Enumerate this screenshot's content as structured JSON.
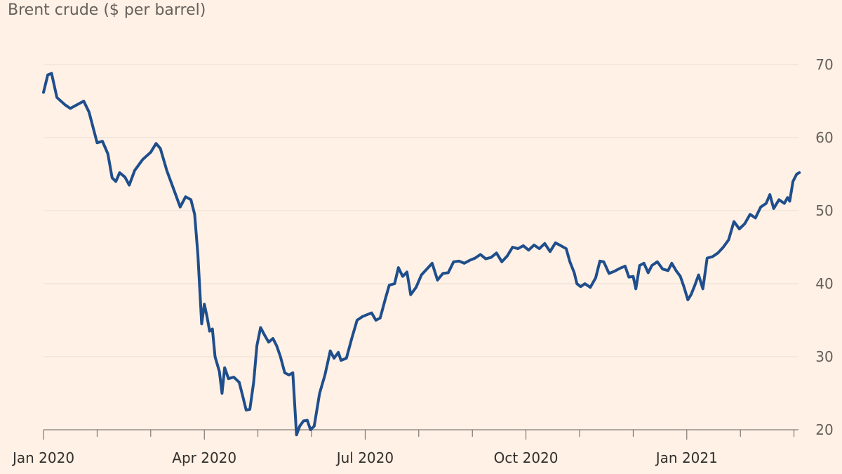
{
  "chart_data": {
    "type": "line",
    "title": "Brent crude ($ per barrel)",
    "xlabel": "",
    "ylabel": "",
    "ylim": [
      20,
      70
    ],
    "y_ticks": [
      20,
      30,
      40,
      50,
      60,
      70
    ],
    "grid": true,
    "x_tick_labels": [
      {
        "label": "Jan 2020",
        "month": 0
      },
      {
        "label": "Apr 2020",
        "month": 3
      },
      {
        "label": "Jul 2020",
        "month": 6
      },
      {
        "label": "Oct 2020",
        "month": 9
      },
      {
        "label": "Jan 2021",
        "month": 12
      }
    ],
    "x_minor_ticks_months": [
      1,
      2,
      4,
      5,
      7,
      8,
      10,
      11,
      13,
      14
    ],
    "x_range_months": [
      0,
      14.1
    ],
    "series": [
      {
        "name": "Brent crude",
        "color": "#1F4E8C",
        "points": [
          [
            0.0,
            66.2
          ],
          [
            0.08,
            68.6
          ],
          [
            0.15,
            68.8
          ],
          [
            0.25,
            65.5
          ],
          [
            0.4,
            64.5
          ],
          [
            0.5,
            64.0
          ],
          [
            0.6,
            64.4
          ],
          [
            0.75,
            65.0
          ],
          [
            0.85,
            63.5
          ],
          [
            1.0,
            59.3
          ],
          [
            1.1,
            59.5
          ],
          [
            1.2,
            57.8
          ],
          [
            1.28,
            54.5
          ],
          [
            1.35,
            54.0
          ],
          [
            1.42,
            55.2
          ],
          [
            1.52,
            54.6
          ],
          [
            1.6,
            53.5
          ],
          [
            1.7,
            55.5
          ],
          [
            1.85,
            57.0
          ],
          [
            2.0,
            58.0
          ],
          [
            2.1,
            59.2
          ],
          [
            2.18,
            58.5
          ],
          [
            2.3,
            55.5
          ],
          [
            2.45,
            52.5
          ],
          [
            2.55,
            50.5
          ],
          [
            2.65,
            51.9
          ],
          [
            2.75,
            51.5
          ],
          [
            2.82,
            49.5
          ],
          [
            2.88,
            44.0
          ],
          [
            2.95,
            34.5
          ],
          [
            3.0,
            37.2
          ],
          [
            3.05,
            35.5
          ],
          [
            3.1,
            33.5
          ],
          [
            3.15,
            33.8
          ],
          [
            3.2,
            30.0
          ],
          [
            3.28,
            28.0
          ],
          [
            3.33,
            25.0
          ],
          [
            3.38,
            28.5
          ],
          [
            3.45,
            27.0
          ],
          [
            3.55,
            27.2
          ],
          [
            3.65,
            26.5
          ],
          [
            3.72,
            24.5
          ],
          [
            3.78,
            22.7
          ],
          [
            3.85,
            22.8
          ],
          [
            3.92,
            26.5
          ],
          [
            3.98,
            31.5
          ],
          [
            4.05,
            34.0
          ],
          [
            4.12,
            33.0
          ],
          [
            4.2,
            32.0
          ],
          [
            4.28,
            32.5
          ],
          [
            4.35,
            31.5
          ],
          [
            4.42,
            30.0
          ],
          [
            4.5,
            27.8
          ],
          [
            4.58,
            27.5
          ],
          [
            4.65,
            27.8
          ],
          [
            4.72,
            19.3
          ],
          [
            4.78,
            20.5
          ],
          [
            4.85,
            21.2
          ],
          [
            4.92,
            21.3
          ],
          [
            4.98,
            20.0
          ],
          [
            5.05,
            20.5
          ],
          [
            5.15,
            25.0
          ],
          [
            5.25,
            27.5
          ],
          [
            5.35,
            30.8
          ],
          [
            5.42,
            29.8
          ],
          [
            5.5,
            30.6
          ],
          [
            5.55,
            29.5
          ],
          [
            5.65,
            29.8
          ],
          [
            5.75,
            32.5
          ],
          [
            5.85,
            35.0
          ],
          [
            5.95,
            35.5
          ],
          [
            6.05,
            35.8
          ],
          [
            6.12,
            36.0
          ],
          [
            6.2,
            35.0
          ],
          [
            6.28,
            35.3
          ],
          [
            6.38,
            38.0
          ],
          [
            6.45,
            39.8
          ],
          [
            6.55,
            40.0
          ],
          [
            6.62,
            42.2
          ],
          [
            6.7,
            41.0
          ],
          [
            6.78,
            41.6
          ],
          [
            6.85,
            38.5
          ],
          [
            6.95,
            39.5
          ],
          [
            7.05,
            41.2
          ],
          [
            7.15,
            42.0
          ],
          [
            7.25,
            42.8
          ],
          [
            7.35,
            40.5
          ],
          [
            7.45,
            41.4
          ],
          [
            7.55,
            41.5
          ],
          [
            7.65,
            43.0
          ],
          [
            7.75,
            43.1
          ],
          [
            7.85,
            42.8
          ],
          [
            7.95,
            43.2
          ],
          [
            8.05,
            43.5
          ],
          [
            8.15,
            44.0
          ],
          [
            8.25,
            43.4
          ],
          [
            8.35,
            43.6
          ],
          [
            8.45,
            44.2
          ],
          [
            8.55,
            43.0
          ],
          [
            8.65,
            43.8
          ],
          [
            8.75,
            45.0
          ],
          [
            8.85,
            44.8
          ],
          [
            8.95,
            45.2
          ],
          [
            9.05,
            44.6
          ],
          [
            9.15,
            45.3
          ],
          [
            9.25,
            44.8
          ],
          [
            9.35,
            45.5
          ],
          [
            9.45,
            44.4
          ],
          [
            9.55,
            45.6
          ],
          [
            9.65,
            45.2
          ],
          [
            9.75,
            44.8
          ],
          [
            9.82,
            43.0
          ],
          [
            9.9,
            41.5
          ],
          [
            9.95,
            40.0
          ],
          [
            10.02,
            39.6
          ],
          [
            10.1,
            40.0
          ],
          [
            10.2,
            39.5
          ],
          [
            10.3,
            40.8
          ],
          [
            10.38,
            43.1
          ],
          [
            10.45,
            43.0
          ],
          [
            10.55,
            41.4
          ],
          [
            10.65,
            41.7
          ],
          [
            10.75,
            42.1
          ],
          [
            10.85,
            42.4
          ],
          [
            10.92,
            40.9
          ],
          [
            11.0,
            41.0
          ],
          [
            11.05,
            39.3
          ],
          [
            11.12,
            42.5
          ],
          [
            11.2,
            42.8
          ],
          [
            11.28,
            41.5
          ],
          [
            11.35,
            42.5
          ],
          [
            11.45,
            43.0
          ],
          [
            11.55,
            42.0
          ],
          [
            11.65,
            41.8
          ],
          [
            11.72,
            42.8
          ],
          [
            11.8,
            41.8
          ],
          [
            11.88,
            41.0
          ],
          [
            11.95,
            39.5
          ],
          [
            12.02,
            37.8
          ],
          [
            12.08,
            38.5
          ],
          [
            12.15,
            39.8
          ],
          [
            12.22,
            41.2
          ],
          [
            12.3,
            39.3
          ],
          [
            12.38,
            43.5
          ],
          [
            12.48,
            43.7
          ],
          [
            12.58,
            44.2
          ],
          [
            12.68,
            45.0
          ],
          [
            12.78,
            46.0
          ],
          [
            12.88,
            48.5
          ],
          [
            12.98,
            47.5
          ],
          [
            13.08,
            48.2
          ],
          [
            13.18,
            49.5
          ],
          [
            13.28,
            49.0
          ],
          [
            13.38,
            50.5
          ],
          [
            13.48,
            51.0
          ],
          [
            13.55,
            52.2
          ],
          [
            13.62,
            50.3
          ],
          [
            13.72,
            51.5
          ],
          [
            13.82,
            51.0
          ],
          [
            13.88,
            51.8
          ],
          [
            13.92,
            51.3
          ],
          [
            13.98,
            54.0
          ],
          [
            14.05,
            55.0
          ],
          [
            14.1,
            55.2
          ]
        ]
      }
    ]
  }
}
